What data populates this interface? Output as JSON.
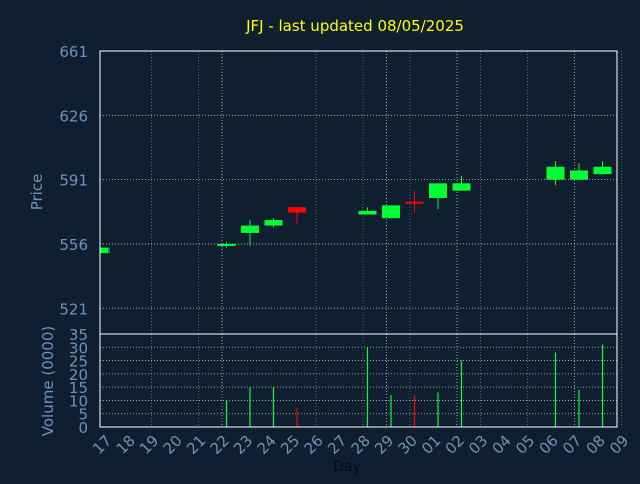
{
  "colors": {
    "background": "#0f1f30",
    "title": "#ffff00",
    "axis_text": "#6f93b8",
    "frame": "#ffffff",
    "grid": "#ffffff",
    "up": "#00ff33",
    "down": "#ff0000"
  },
  "chart_data": [
    {
      "type": "candlestick",
      "title": "JFJ - last updated 08/05/2025",
      "ylabel": "Price",
      "ylim": [
        507,
        661
      ],
      "yticks": [
        "661",
        "626",
        "591",
        "556",
        "521"
      ],
      "grid": true,
      "candles": [
        {
          "day": "17",
          "open": 551,
          "high": 554,
          "low": 551,
          "close": 554
        },
        {
          "day": "22",
          "open": 555.5,
          "high": 557,
          "low": 554,
          "close": 556
        },
        {
          "day": "23",
          "open": 562,
          "high": 569,
          "low": 555,
          "close": 566
        },
        {
          "day": "24",
          "open": 566,
          "high": 570,
          "low": 565,
          "close": 569
        },
        {
          "day": "25",
          "open": 576,
          "high": 576,
          "low": 567,
          "close": 573
        },
        {
          "day": "28",
          "open": 572,
          "high": 576,
          "low": 572,
          "close": 574
        },
        {
          "day": "29",
          "open": 570,
          "high": 577,
          "low": 570,
          "close": 577
        },
        {
          "day": "30",
          "open": 579,
          "high": 585,
          "low": 573,
          "close": 578
        },
        {
          "day": "01",
          "open": 581,
          "high": 589,
          "low": 575,
          "close": 589
        },
        {
          "day": "02",
          "open": 585,
          "high": 593,
          "low": 585,
          "close": 589
        },
        {
          "day": "06",
          "open": 591,
          "high": 601,
          "low": 588,
          "close": 598
        },
        {
          "day": "07",
          "open": 591,
          "high": 600,
          "low": 591,
          "close": 596
        },
        {
          "day": "08",
          "open": 594,
          "high": 601,
          "low": 594,
          "close": 598
        }
      ]
    },
    {
      "type": "bar",
      "xlabel": "Day",
      "ylabel": "Volume (0000)",
      "ylim": [
        0,
        35
      ],
      "yticks": [
        "35",
        "30",
        "25",
        "20",
        "15",
        "10",
        "5",
        "0"
      ],
      "grid": true,
      "categories": [
        "17",
        "18",
        "19",
        "20",
        "21",
        "22",
        "23",
        "24",
        "25",
        "26",
        "27",
        "28",
        "29",
        "30",
        "01",
        "02",
        "03",
        "04",
        "05",
        "06",
        "07",
        "08",
        "09"
      ],
      "volumes": [
        {
          "day": "22",
          "value": 10,
          "direction": "up"
        },
        {
          "day": "23",
          "value": 15,
          "direction": "up"
        },
        {
          "day": "24",
          "value": 15,
          "direction": "up"
        },
        {
          "day": "25",
          "value": 7,
          "direction": "down"
        },
        {
          "day": "28",
          "value": 30,
          "direction": "up"
        },
        {
          "day": "29",
          "value": 12,
          "direction": "up"
        },
        {
          "day": "30",
          "value": 12,
          "direction": "down"
        },
        {
          "day": "01",
          "value": 13,
          "direction": "up"
        },
        {
          "day": "02",
          "value": 25,
          "direction": "up"
        },
        {
          "day": "06",
          "value": 28,
          "direction": "up"
        },
        {
          "day": "07",
          "value": 14,
          "direction": "up"
        },
        {
          "day": "08",
          "value": 31,
          "direction": "up"
        }
      ]
    }
  ]
}
